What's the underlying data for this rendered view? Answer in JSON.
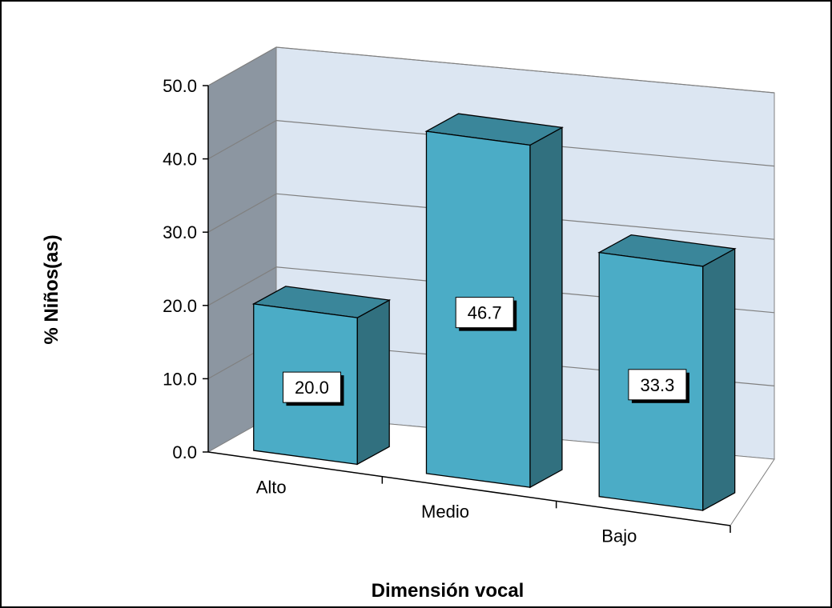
{
  "chart_data": {
    "type": "bar",
    "style": "3d-column",
    "categories": [
      "Alto",
      "Medio",
      "Bajo"
    ],
    "values": [
      20.0,
      46.7,
      33.3
    ],
    "data_labels": [
      "20.0",
      "46.7",
      "33.3"
    ],
    "title": "",
    "xlabel": "Dimensión vocal",
    "ylabel": "% Niños(as)",
    "ylim": [
      0,
      50
    ],
    "yticks": [
      "0.0",
      "10.0",
      "20.0",
      "30.0",
      "40.0",
      "50.0"
    ],
    "grid": true,
    "legend": "none",
    "colors": {
      "bar_front": "#4BACC6",
      "bar_side": "#31707F",
      "bar_top": "#3A869A",
      "back_wall": "#DCE6F2",
      "side_wall": "#8C96A1",
      "grid": "#808080"
    }
  }
}
